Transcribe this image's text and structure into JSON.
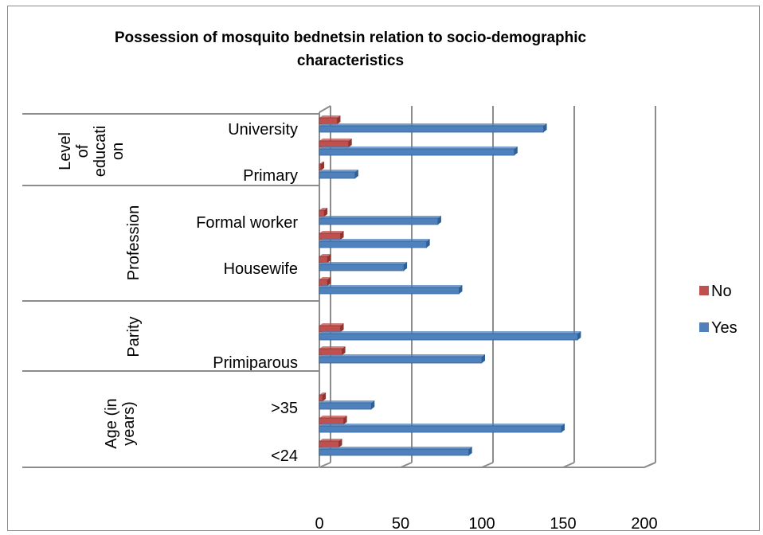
{
  "chart_data": {
    "type": "bar",
    "orientation": "horizontal",
    "title_lines": [
      "Possession of mosquito bednetsin relation to socio-demographic",
      "characteristics"
    ],
    "groups": [
      {
        "label_lines": [
          "Level",
          "of",
          "educati",
          "on"
        ],
        "categories": [
          "University",
          "",
          "Primary"
        ]
      },
      {
        "label_lines": [
          "Profession"
        ],
        "categories": [
          "Formal worker",
          "",
          "Housewife",
          ""
        ]
      },
      {
        "label_lines": [
          "Parity"
        ],
        "categories": [
          "",
          "Primiparous"
        ]
      },
      {
        "label_lines": [
          "Age (in",
          "years)"
        ],
        "categories": [
          ">35",
          "",
          "<24"
        ]
      }
    ],
    "series": [
      {
        "name": "No",
        "color": "#c0504d",
        "values": [
          11,
          18,
          1,
          3,
          13,
          5,
          5,
          13,
          14,
          2,
          15,
          12
        ]
      },
      {
        "name": "Yes",
        "color": "#4f81bd",
        "values": [
          138,
          120,
          22,
          73,
          66,
          52,
          86,
          159,
          100,
          32,
          149,
          92
        ]
      }
    ],
    "xlim": [
      0,
      200
    ],
    "xticks": [
      0,
      50,
      100,
      150,
      200
    ],
    "grid": true,
    "legend_position": "right"
  }
}
